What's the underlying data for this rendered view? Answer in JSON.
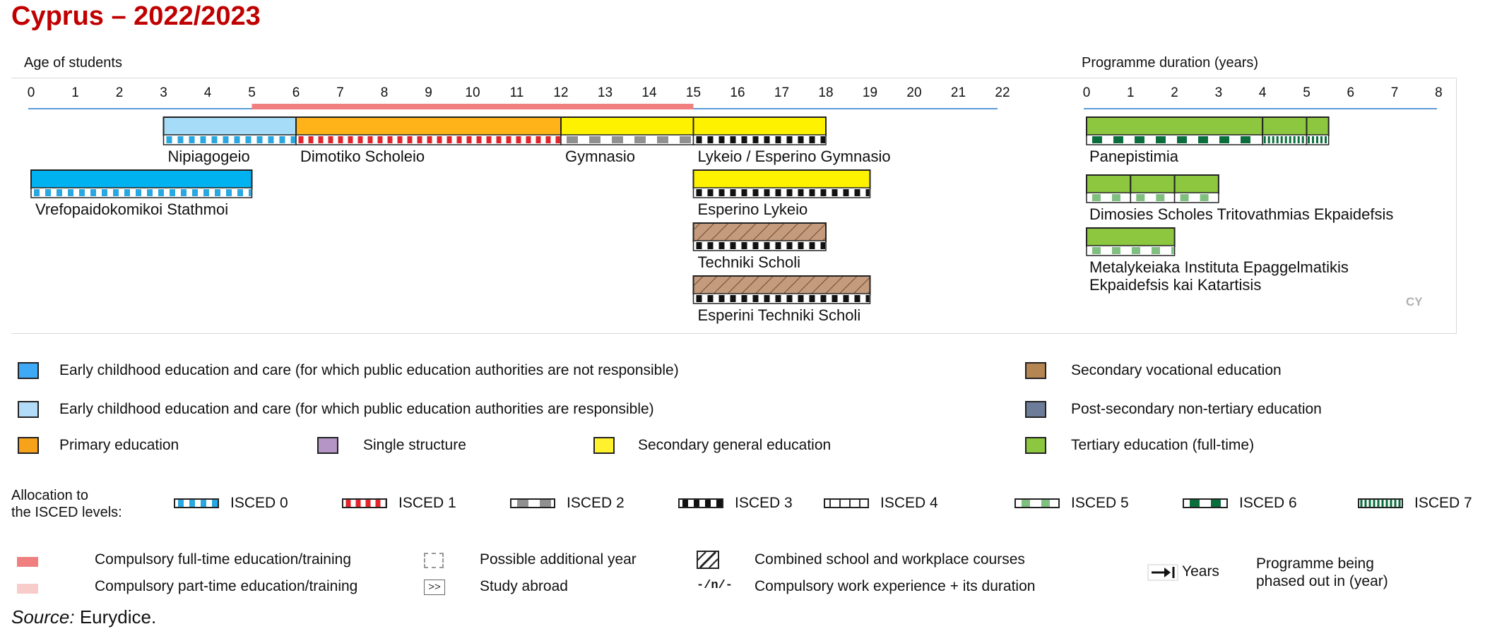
{
  "title": "Cyprus – 2022/2023",
  "age_axis": {
    "label": "Age of students",
    "ticks": [
      "0",
      "1",
      "2",
      "3",
      "4",
      "5",
      "6",
      "7",
      "8",
      "9",
      "10",
      "11",
      "12",
      "13",
      "14",
      "15",
      "16",
      "17",
      "18",
      "19",
      "20",
      "21",
      "22"
    ],
    "compulsory_full_time": [
      5,
      15
    ]
  },
  "duration_axis": {
    "label": "Programme duration (years)",
    "ticks": [
      "0",
      "1",
      "2",
      "3",
      "4",
      "5",
      "6",
      "7",
      "8"
    ]
  },
  "programmes": [
    {
      "name": "Nipiagogeio",
      "start": 3,
      "end": 6,
      "color": "#a6dcf7",
      "isced": "isced0"
    },
    {
      "name": "Dimotiko Scholeio",
      "start": 6,
      "end": 12,
      "color": "#ffb319",
      "isced": "isced1"
    },
    {
      "name": "Gymnasio",
      "start": 12,
      "end": 15,
      "color": "#fff200",
      "isced": "isced2"
    },
    {
      "name": "Lykeio / Esperino Gymnasio",
      "start": 15,
      "end": 18,
      "color": "#fff200",
      "isced": "isced3"
    },
    {
      "name": "Vrefopaidokomikoi Stathmoi",
      "start": 0,
      "end": 5,
      "color": "#00b2ef",
      "isced": "isced0"
    },
    {
      "name": "Esperino Lykeio",
      "start": 15,
      "end": 19,
      "color": "#fff200",
      "isced": "isced3"
    },
    {
      "name": "Techniki Scholi",
      "start": 15,
      "end": 18,
      "color": "#c59b7d",
      "isced": "isced3",
      "hatched": true
    },
    {
      "name": "Esperini Techniki Scholi",
      "start": 15,
      "end": 19,
      "color": "#c59b7d",
      "isced": "isced3",
      "hatched": true
    }
  ],
  "tertiary": [
    {
      "name": "Panepistimia",
      "segments": [
        [
          0,
          4,
          "isced6"
        ],
        [
          4,
          5,
          "isced7"
        ],
        [
          5,
          5.5,
          "isced7"
        ]
      ]
    },
    {
      "name": "Dimosies Scholes Tritovathmias Ekpaidefsis",
      "segments": [
        [
          0,
          1,
          "isced5"
        ],
        [
          1,
          2,
          "isced5"
        ],
        [
          2,
          3,
          "isced5"
        ]
      ]
    },
    {
      "name_line1": "Metalykeiaka Instituta Epaggelmatikis",
      "name_line2": "Ekpaidefsis kai Katartisis",
      "segments": [
        [
          0,
          2,
          "isced5"
        ]
      ]
    }
  ],
  "cy_label": "CY",
  "legend": {
    "ecec_not": "Early childhood education and care (for which public education authorities are not responsible)",
    "ecec_resp": "Early childhood education and care (for which public education authorities are responsible)",
    "primary": "Primary education",
    "single": "Single structure",
    "secondary_general": "Secondary general education",
    "secondary_vocational": "Secondary vocational education",
    "post_secondary": "Post-secondary non-tertiary education",
    "tertiary": "Tertiary education (full-time)"
  },
  "colors": {
    "ecec_not": "#3fa9f5",
    "ecec_resp": "#b3dcf8",
    "primary": "#f7a21b",
    "single": "#b594c6",
    "secondary_general": "#fff22c",
    "secondary_vocational": "#b58553",
    "post_secondary": "#6d7d99",
    "tertiary": "#8dc63f",
    "compulsory_ft": "#f08080",
    "compulsory_pt": "#f9cccc",
    "axis_line": "#5b9bd5"
  },
  "allocation_label_1": "Allocation to",
  "allocation_label_2": "the ISCED levels:",
  "isced_levels": [
    "ISCED 0",
    "ISCED 1",
    "ISCED 2",
    "ISCED 3",
    "ISCED 4",
    "ISCED 5",
    "ISCED 6",
    "ISCED 7"
  ],
  "notes": {
    "compulsory_ft": "Compulsory full-time education/training",
    "compulsory_pt": "Compulsory part-time education/training",
    "additional_year": "Possible additional year",
    "study_abroad": "Study abroad",
    "study_abroad_symbol": ">>",
    "combined": "Combined school and workplace courses",
    "work_experience": "Compulsory work experience + its duration",
    "work_symbol": "-/n/-",
    "years": "Years",
    "phased_out_1": "Programme being",
    "phased_out_2": "phased out in (year)"
  },
  "source_label": "Source:",
  "source_text": " Eurydice."
}
